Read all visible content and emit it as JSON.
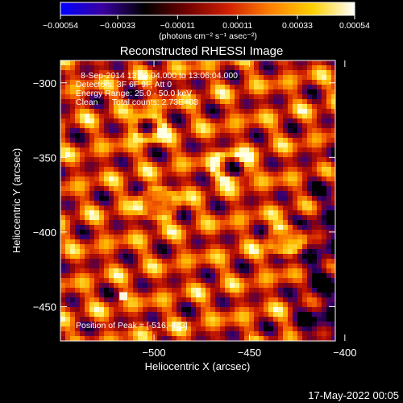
{
  "chart_data": {
    "type": "heatmap",
    "title": "Reconstructed RHESSI Image",
    "xlabel": "Heliocentric X (arcsec)",
    "ylabel": "Heliocentric Y (arcsec)",
    "xlim": [
      -549,
      -405
    ],
    "ylim": [
      -473,
      -285
    ],
    "xticks": [
      -500,
      -450,
      -400
    ],
    "xtick_labels": [
      "−500",
      "−450",
      "−400"
    ],
    "yticks": [
      -300,
      -350,
      -400,
      -450
    ],
    "ytick_labels": [
      "−300",
      "−350",
      "−400",
      "−450"
    ],
    "colorbar": {
      "min": -0.00054,
      "max": 0.00054,
      "ticks": [
        -0.00054,
        -0.00033,
        -0.00011,
        0.00011,
        0.00033,
        0.00054
      ],
      "tick_labels": [
        "−0.00054",
        "−0.00033",
        "−0.00011",
        "0.00011",
        "0.00033",
        "0.00054"
      ],
      "units_label": "(photons cm⁻² s⁻¹ asec⁻²)",
      "colormap": [
        "#0000ff",
        "#3a00a0",
        "#000000",
        "#700000",
        "#d02000",
        "#ff8000",
        "#ffd000",
        "#ffffff"
      ]
    },
    "annotations": [
      "8-Sep-2014 13:00:04.000 to 13:06:04.000",
      "Detectors: 3F 6F 9F, Att 0",
      "Energy Range: 25.0 - 50.0 keV",
      "Clean      Total counts: 2.73E+03"
    ],
    "peak_label": "Position of Peak = [-516,-443]",
    "peak": [
      -516,
      -443
    ],
    "rings": [
      {
        "x": -498,
        "y": -381,
        "r": 10
      },
      {
        "x": -431,
        "y": -405,
        "r": 9
      },
      {
        "x": -503,
        "y": -330,
        "r": 8
      },
      {
        "x": -460,
        "y": -356,
        "r": 9
      }
    ]
  },
  "footer": {
    "timestamp": "17-May-2022 00:05"
  }
}
